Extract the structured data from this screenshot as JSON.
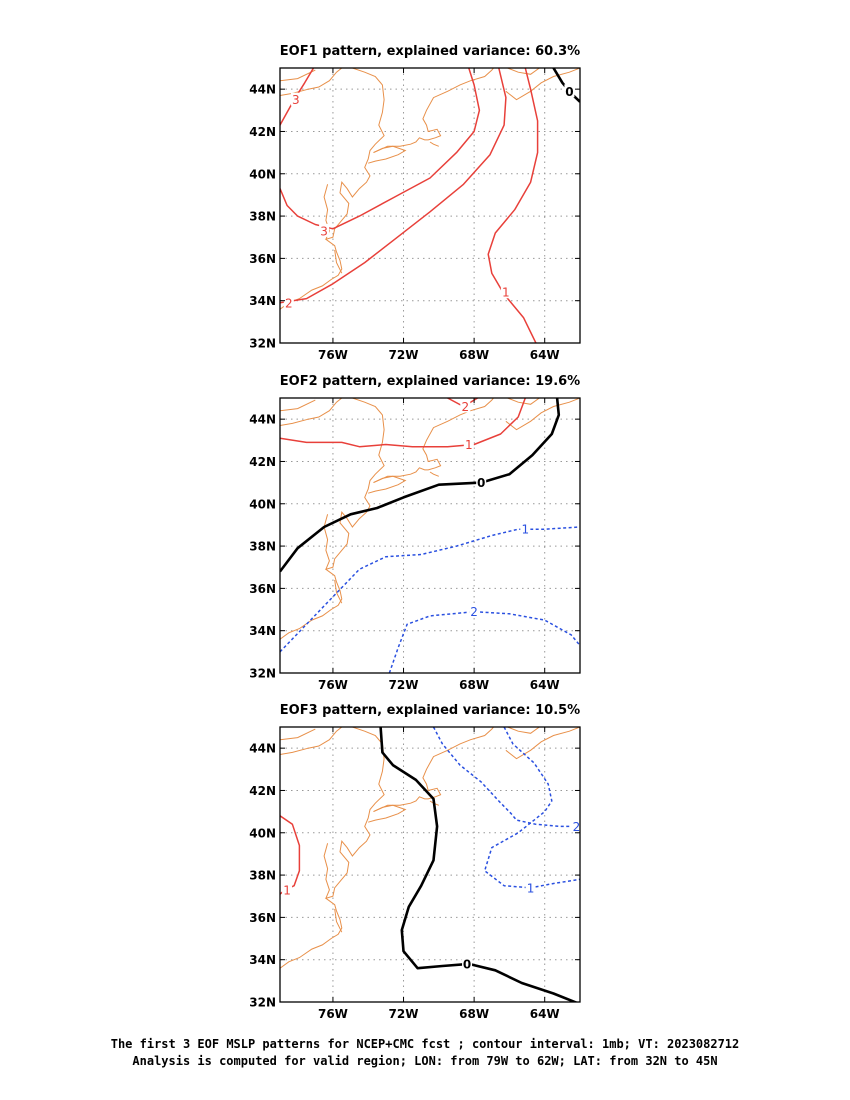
{
  "chart_data": [
    {
      "type": "contour",
      "title": "EOF1 pattern, explained variance: 60.3%",
      "x_ticks": [
        "76W",
        "72W",
        "68W",
        "64W"
      ],
      "y_ticks": [
        "32N",
        "34N",
        "36N",
        "38N",
        "40N",
        "42N",
        "44N"
      ],
      "xlim": [
        -79,
        -62
      ],
      "ylim": [
        32,
        45
      ],
      "colors": {
        "positive": "#e8403a",
        "zero": "#000000",
        "negative": "#2a50e0"
      },
      "contours": [
        {
          "level": 3,
          "label": "3",
          "points": [
            [
              -79,
              42.3
            ],
            [
              -78.2,
              43.5
            ],
            [
              -77.6,
              44.3
            ],
            [
              -77.1,
              45
            ]
          ]
        },
        {
          "level": 3,
          "label": "3",
          "points": [
            [
              -79,
              39.3
            ],
            [
              -78.6,
              38.5
            ],
            [
              -78,
              38
            ],
            [
              -77,
              37.6
            ],
            [
              -76,
              37.4
            ],
            [
              -74.5,
              38
            ],
            [
              -72.5,
              38.9
            ],
            [
              -70.5,
              39.8
            ],
            [
              -69,
              41
            ],
            [
              -68,
              42
            ],
            [
              -67.7,
              43
            ],
            [
              -68,
              44.2
            ],
            [
              -68.3,
              45
            ]
          ]
        },
        {
          "level": 2,
          "label": "2",
          "points": [
            [
              -79,
              33.9
            ],
            [
              -77.5,
              34.1
            ],
            [
              -76,
              34.8
            ],
            [
              -74.2,
              35.8
            ],
            [
              -72.5,
              36.9
            ],
            [
              -70.5,
              38.2
            ],
            [
              -68.6,
              39.5
            ],
            [
              -67.1,
              40.9
            ],
            [
              -66.3,
              42.3
            ],
            [
              -66.2,
              43.6
            ],
            [
              -66.6,
              45
            ]
          ]
        },
        {
          "level": 1,
          "label": "1",
          "points": [
            [
              -64.5,
              32
            ],
            [
              -65.2,
              33.2
            ],
            [
              -66.3,
              34.3
            ],
            [
              -67,
              35.3
            ],
            [
              -67.2,
              36.2
            ],
            [
              -66.8,
              37.2
            ],
            [
              -65.7,
              38.3
            ],
            [
              -64.8,
              39.6
            ],
            [
              -64.4,
              41
            ],
            [
              -64.4,
              42.5
            ],
            [
              -64.8,
              44
            ],
            [
              -65.1,
              45
            ]
          ]
        },
        {
          "level": 0,
          "label": "0",
          "points": [
            [
              -63.5,
              45
            ],
            [
              -63,
              44.3
            ],
            [
              -62.5,
              43.8
            ],
            [
              -62,
              43.4
            ]
          ]
        }
      ],
      "labels": [
        {
          "text": "3",
          "lon": -78.1,
          "lat": 43.5,
          "level": 3
        },
        {
          "text": "3",
          "lon": -76.5,
          "lat": 37.3,
          "level": 3
        },
        {
          "text": "2",
          "lon": -78.5,
          "lat": 33.9,
          "level": 2
        },
        {
          "text": "1",
          "lon": -66.2,
          "lat": 34.4,
          "level": 1
        },
        {
          "text": "0",
          "lon": -62.6,
          "lat": 43.9,
          "level": 0
        }
      ]
    },
    {
      "type": "contour",
      "title": "EOF2 pattern, explained variance: 19.6%",
      "x_ticks": [
        "76W",
        "72W",
        "68W",
        "64W"
      ],
      "y_ticks": [
        "32N",
        "34N",
        "36N",
        "38N",
        "40N",
        "42N",
        "44N"
      ],
      "xlim": [
        -79,
        -62
      ],
      "ylim": [
        32,
        45
      ],
      "colors": {
        "positive": "#e8403a",
        "zero": "#000000",
        "negative": "#2a50e0"
      },
      "contours": [
        {
          "level": 2,
          "label": "2",
          "points": [
            [
              -69.5,
              45
            ],
            [
              -68.6,
              44.6
            ],
            [
              -67.8,
              45
            ]
          ]
        },
        {
          "level": 1,
          "label": "1",
          "points": [
            [
              -79,
              43.1
            ],
            [
              -77.5,
              42.9
            ],
            [
              -75.5,
              42.9
            ],
            [
              -74.5,
              42.7
            ],
            [
              -73,
              42.8
            ],
            [
              -71.5,
              42.7
            ],
            [
              -69.5,
              42.7
            ],
            [
              -68,
              42.8
            ],
            [
              -66.5,
              43.3
            ],
            [
              -65.5,
              44.1
            ],
            [
              -65.1,
              45
            ]
          ]
        },
        {
          "level": 0,
          "label": "0",
          "points": [
            [
              -79,
              36.8
            ],
            [
              -78,
              37.9
            ],
            [
              -76.5,
              38.9
            ],
            [
              -75,
              39.5
            ],
            [
              -73.5,
              39.8
            ],
            [
              -72,
              40.3
            ],
            [
              -70,
              40.9
            ],
            [
              -67.6,
              41
            ],
            [
              -66,
              41.4
            ],
            [
              -64.7,
              42.3
            ],
            [
              -63.6,
              43.3
            ],
            [
              -63.2,
              44.2
            ],
            [
              -63.3,
              45
            ]
          ]
        },
        {
          "level": -1,
          "label": "1",
          "dashed": true,
          "points": [
            [
              -79,
              33
            ],
            [
              -77.5,
              34.3
            ],
            [
              -76,
              35.6
            ],
            [
              -74.5,
              36.9
            ],
            [
              -73,
              37.5
            ],
            [
              -71,
              37.6
            ],
            [
              -69,
              38
            ],
            [
              -67,
              38.5
            ],
            [
              -65.5,
              38.8
            ],
            [
              -64,
              38.8
            ],
            [
              -62,
              38.9
            ]
          ]
        },
        {
          "level": -2,
          "label": "2",
          "dashed": true,
          "points": [
            [
              -72.8,
              32
            ],
            [
              -72.3,
              33.2
            ],
            [
              -71.8,
              34.3
            ],
            [
              -70.5,
              34.7
            ],
            [
              -68,
              34.9
            ],
            [
              -66,
              34.8
            ],
            [
              -64,
              34.5
            ],
            [
              -62.5,
              33.8
            ],
            [
              -62,
              33.3
            ]
          ]
        }
      ],
      "labels": [
        {
          "text": "2",
          "lon": -68.5,
          "lat": 44.6,
          "level": 2
        },
        {
          "text": "1",
          "lon": -68.3,
          "lat": 42.8,
          "level": 1
        },
        {
          "text": "0",
          "lon": -67.6,
          "lat": 41,
          "level": 0
        },
        {
          "text": "1",
          "lon": -65.1,
          "lat": 38.8,
          "level": -1
        },
        {
          "text": "2",
          "lon": -68.0,
          "lat": 34.9,
          "level": -2
        }
      ]
    },
    {
      "type": "contour",
      "title": "EOF3 pattern, explained variance: 10.5%",
      "x_ticks": [
        "76W",
        "72W",
        "68W",
        "64W"
      ],
      "y_ticks": [
        "32N",
        "34N",
        "36N",
        "38N",
        "40N",
        "42N",
        "44N"
      ],
      "xlim": [
        -79,
        -62
      ],
      "ylim": [
        32,
        45
      ],
      "colors": {
        "positive": "#e8403a",
        "zero": "#000000",
        "negative": "#2a50e0"
      },
      "contours": [
        {
          "level": 1,
          "label": "1",
          "points": [
            [
              -79,
              40.8
            ],
            [
              -78.3,
              40.4
            ],
            [
              -77.9,
              39.4
            ],
            [
              -77.9,
              38.2
            ],
            [
              -78.2,
              37.5
            ],
            [
              -78.7,
              37.3
            ],
            [
              -79,
              37.1
            ]
          ]
        },
        {
          "level": 0,
          "label": "0",
          "points": [
            [
              -73.3,
              45
            ],
            [
              -73.2,
              43.8
            ],
            [
              -72.6,
              43.2
            ],
            [
              -71.3,
              42.5
            ],
            [
              -70.3,
              41.6
            ],
            [
              -70.1,
              40.3
            ],
            [
              -70.3,
              38.7
            ],
            [
              -71,
              37.5
            ],
            [
              -71.7,
              36.5
            ],
            [
              -72.1,
              35.4
            ],
            [
              -72,
              34.4
            ],
            [
              -71.2,
              33.6
            ],
            [
              -69.8,
              33.7
            ],
            [
              -68.3,
              33.8
            ],
            [
              -66.8,
              33.5
            ],
            [
              -65.3,
              32.9
            ],
            [
              -63.5,
              32.4
            ],
            [
              -62,
              31.9
            ]
          ]
        },
        {
          "level": -2,
          "label": "2",
          "dashed": true,
          "points": [
            [
              -70.3,
              45
            ],
            [
              -69.8,
              44.2
            ],
            [
              -68.8,
              43.2
            ],
            [
              -67.6,
              42.4
            ],
            [
              -66.6,
              41.5
            ],
            [
              -65.9,
              40.9
            ],
            [
              -65.6,
              40.6
            ],
            [
              -64.5,
              40.4
            ],
            [
              -63.1,
              40.3
            ],
            [
              -62,
              40.3
            ]
          ]
        },
        {
          "level": -1,
          "label": "1",
          "dashed": true,
          "points": [
            [
              -66.3,
              45
            ],
            [
              -65.8,
              44.2
            ],
            [
              -64.6,
              43.3
            ],
            [
              -63.8,
              42.3
            ],
            [
              -63.6,
              41.5
            ],
            [
              -64,
              41
            ],
            [
              -65.5,
              40
            ],
            [
              -67,
              39.3
            ],
            [
              -67.4,
              38.2
            ],
            [
              -66.3,
              37.5
            ],
            [
              -64.8,
              37.4
            ],
            [
              -63.5,
              37.6
            ],
            [
              -62,
              37.8
            ]
          ]
        }
      ],
      "labels": [
        {
          "text": "1",
          "lon": -78.6,
          "lat": 37.3,
          "level": 1
        },
        {
          "text": "0",
          "lon": -68.4,
          "lat": 33.8,
          "level": 0
        },
        {
          "text": "2",
          "lon": -62.2,
          "lat": 40.3,
          "level": -2
        },
        {
          "text": "1",
          "lon": -64.8,
          "lat": 37.4,
          "level": -1
        }
      ]
    }
  ],
  "coastlines": [
    [
      [
        -79,
        43.7
      ],
      [
        -78.3,
        43.8
      ],
      [
        -77.4,
        44
      ],
      [
        -76.8,
        44.1
      ],
      [
        -76.2,
        44.4
      ],
      [
        -75.8,
        44.8
      ],
      [
        -75.5,
        45
      ]
    ],
    [
      [
        -79,
        44.4
      ],
      [
        -78,
        44.5
      ],
      [
        -77,
        44.9
      ]
    ],
    [
      [
        -74.9,
        45
      ],
      [
        -74.2,
        44.8
      ],
      [
        -73.6,
        44.6
      ],
      [
        -73.2,
        44.2
      ],
      [
        -73.1,
        43.5
      ],
      [
        -73.2,
        42.9
      ],
      [
        -73.4,
        42.3
      ],
      [
        -73.1,
        41.8
      ],
      [
        -73.6,
        41.4
      ],
      [
        -73.9,
        41.1
      ],
      [
        -74,
        40.7
      ],
      [
        -74.2,
        40.3
      ],
      [
        -73.9,
        39.9
      ],
      [
        -74.1,
        39.6
      ],
      [
        -74.5,
        39.3
      ],
      [
        -74.9,
        38.9
      ],
      [
        -75.2,
        39.3
      ],
      [
        -75.5,
        39.6
      ],
      [
        -75.6,
        39.1
      ],
      [
        -75.1,
        38.6
      ],
      [
        -75.2,
        38.1
      ],
      [
        -75.5,
        37.8
      ],
      [
        -75.9,
        37.4
      ],
      [
        -76,
        37
      ],
      [
        -76.4,
        36.9
      ],
      [
        -75.9,
        36.6
      ],
      [
        -75.8,
        36.3
      ],
      [
        -75.6,
        35.9
      ],
      [
        -75.5,
        35.5
      ],
      [
        -75.7,
        35.2
      ],
      [
        -76.1,
        35
      ],
      [
        -76.6,
        34.7
      ],
      [
        -77.2,
        34.5
      ],
      [
        -77.9,
        34.1
      ],
      [
        -78.5,
        33.9
      ],
      [
        -79,
        33.6
      ]
    ],
    [
      [
        -74,
        40.5
      ],
      [
        -73.6,
        40.6
      ],
      [
        -73,
        40.7
      ],
      [
        -72.3,
        40.9
      ],
      [
        -71.9,
        41.1
      ],
      [
        -72.6,
        41.3
      ],
      [
        -73.2,
        41.2
      ],
      [
        -73.7,
        41
      ]
    ],
    [
      [
        -73.7,
        41
      ],
      [
        -72.9,
        41.3
      ],
      [
        -72.2,
        41.3
      ],
      [
        -71.6,
        41.4
      ],
      [
        -71.3,
        41.5
      ],
      [
        -71.1,
        41.7
      ],
      [
        -70.8,
        41.6
      ],
      [
        -70.6,
        41.6
      ],
      [
        -70.2,
        41.7
      ],
      [
        -69.9,
        41.8
      ],
      [
        -70.1,
        42.1
      ],
      [
        -70.6,
        42
      ],
      [
        -70.7,
        42.3
      ],
      [
        -70.9,
        42.6
      ],
      [
        -70.7,
        43
      ],
      [
        -70.3,
        43.6
      ],
      [
        -69.5,
        43.9
      ],
      [
        -68.8,
        44.2
      ],
      [
        -68.2,
        44.4
      ],
      [
        -67.4,
        44.6
      ],
      [
        -67,
        44.9
      ],
      [
        -66.9,
        45
      ]
    ],
    [
      [
        -70,
        41.3
      ],
      [
        -70.3,
        41.4
      ],
      [
        -70.5,
        41.5
      ]
    ],
    [
      [
        -66.1,
        45
      ],
      [
        -65.5,
        44.8
      ],
      [
        -64.8,
        44.7
      ],
      [
        -64.3,
        45
      ],
      [
        -63.5,
        45.1
      ]
    ],
    [
      [
        -66.2,
        43.9
      ],
      [
        -65.6,
        43.5
      ],
      [
        -64.8,
        43.9
      ],
      [
        -64.2,
        44.3
      ],
      [
        -63.5,
        44.6
      ],
      [
        -62.6,
        44.8
      ],
      [
        -62,
        45
      ]
    ],
    [
      [
        -76.3,
        39.5
      ],
      [
        -76.5,
        38.9
      ],
      [
        -76.3,
        38.3
      ],
      [
        -76.4,
        37.8
      ],
      [
        -76.2,
        37.3
      ],
      [
        -76.4,
        36.9
      ]
    ],
    [
      [
        -75.5,
        35.3
      ],
      [
        -75.8,
        35.8
      ],
      [
        -75.9,
        36.4
      ]
    ]
  ],
  "caption": {
    "line1": "The first 3 EOF MSLP patterns for NCEP+CMC fcst ; contour interval: 1mb; VT: 2023082712",
    "line2": "Analysis is computed for valid region; LON: from 79W to 62W; LAT: from 32N to 45N"
  }
}
